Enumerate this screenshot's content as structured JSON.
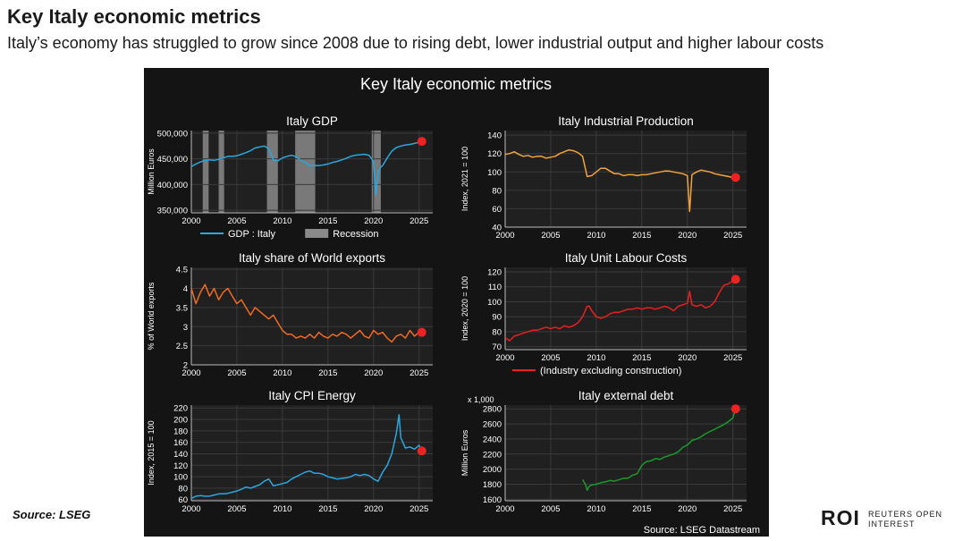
{
  "header": {
    "title": "Key Italy economic metrics",
    "subtitle": "Italy’s economy has struggled to grow since 2008 due to rising debt, lower industrial output and higher labour costs"
  },
  "footer": {
    "source_left": "Source: LSEG",
    "brand": "ROI",
    "brand_tag_line1": "REUTERS OPEN",
    "brand_tag_line2": "INTEREST"
  },
  "figure": {
    "title": "Key Italy economic metrics",
    "source": "Source: LSEG Datastream",
    "background": "#141414"
  },
  "chart_data": [
    {
      "type": "line",
      "title": "Italy GDP",
      "ylabel": "Million Euros",
      "color": "#29a8e0",
      "xlim": [
        2000,
        2026.5
      ],
      "ylim": [
        345000,
        505000
      ],
      "yticks": [
        350000,
        400000,
        450000,
        500000
      ],
      "ytick_labels": [
        "350,000",
        "400,000",
        "450,000",
        "500,000"
      ],
      "xticks": [
        2000,
        2005,
        2010,
        2015,
        2020,
        2025
      ],
      "legend": [
        {
          "label": "GDP : Italy",
          "kind": "line"
        },
        {
          "label": "Recession",
          "kind": "box"
        }
      ],
      "recessions": [
        [
          2001.25,
          2001.9
        ],
        [
          2003.0,
          2003.6
        ],
        [
          2008.3,
          2009.5
        ],
        [
          2011.4,
          2013.6
        ],
        [
          2019.8,
          2020.8
        ]
      ],
      "series": [
        {
          "name": "GDP : Italy",
          "x": [
            2000,
            2000.5,
            2001,
            2001.5,
            2002,
            2002.5,
            2003,
            2003.5,
            2004,
            2004.5,
            2005,
            2005.5,
            2006,
            2006.5,
            2007,
            2007.5,
            2008,
            2008.5,
            2009,
            2009.5,
            2010,
            2010.5,
            2011,
            2011.5,
            2012,
            2012.5,
            2013,
            2013.5,
            2014,
            2014.5,
            2015,
            2015.5,
            2016,
            2016.5,
            2017,
            2017.5,
            2018,
            2018.5,
            2019,
            2019.5,
            2020,
            2020.25,
            2020.5,
            2020.75,
            2021,
            2021.5,
            2022,
            2022.5,
            2023,
            2023.5,
            2024,
            2024.5,
            2025,
            2025.3
          ],
          "y": [
            435000,
            440000,
            444000,
            447000,
            448000,
            447000,
            449000,
            452000,
            455000,
            455000,
            456000,
            459000,
            462000,
            466000,
            471000,
            473000,
            475000,
            470000,
            448000,
            446000,
            452000,
            455000,
            457000,
            454000,
            447000,
            443000,
            437000,
            437000,
            437000,
            438000,
            440000,
            443000,
            445000,
            448000,
            451000,
            455000,
            457000,
            458000,
            459000,
            457000,
            445000,
            380000,
            425000,
            433000,
            437000,
            452000,
            465000,
            472000,
            475000,
            477000,
            478000,
            480000,
            482000,
            484000
          ]
        }
      ],
      "last_point": [
        2025.3,
        484000
      ]
    },
    {
      "type": "line",
      "title": "Italy Industrial Production",
      "ylabel": "Index, 2021 = 100",
      "color": "#f2a33a",
      "xlim": [
        2000,
        2026.5
      ],
      "ylim": [
        40,
        145
      ],
      "yticks": [
        40,
        60,
        80,
        100,
        120,
        140
      ],
      "xticks": [
        2000,
        2005,
        2010,
        2015,
        2020,
        2025
      ],
      "series": [
        {
          "name": "Industrial Production",
          "x": [
            2000,
            2000.5,
            2001,
            2001.5,
            2002,
            2002.5,
            2003,
            2003.5,
            2004,
            2004.5,
            2005,
            2005.5,
            2006,
            2006.5,
            2007,
            2007.5,
            2008,
            2008.5,
            2009,
            2009.5,
            2010,
            2010.5,
            2011,
            2011.5,
            2012,
            2012.5,
            2013,
            2013.5,
            2014,
            2014.5,
            2015,
            2015.5,
            2016,
            2016.5,
            2017,
            2017.5,
            2018,
            2018.5,
            2019,
            2019.5,
            2020,
            2020.25,
            2020.5,
            2021,
            2021.5,
            2022,
            2022.5,
            2023,
            2023.5,
            2024,
            2024.5,
            2025,
            2025.3
          ],
          "y": [
            119,
            120,
            122,
            119,
            117,
            118,
            116,
            117,
            117,
            115,
            116,
            117,
            120,
            122,
            124,
            123,
            121,
            117,
            95,
            96,
            100,
            104,
            104,
            101,
            98,
            98,
            96,
            97,
            97,
            96,
            97,
            97,
            98,
            99,
            100,
            101,
            101,
            100,
            99,
            98,
            96,
            57,
            97,
            100,
            102,
            101,
            100,
            98,
            97,
            96,
            95,
            94,
            94
          ]
        }
      ],
      "last_point": [
        2025.3,
        94
      ]
    },
    {
      "type": "line",
      "title": "Italy share of World exports",
      "ylabel": "% of World exports",
      "color": "#f06a22",
      "xlim": [
        2000,
        2026.5
      ],
      "ylim": [
        2.0,
        4.55
      ],
      "yticks": [
        2.0,
        2.5,
        3.0,
        3.5,
        4.0,
        4.5
      ],
      "xticks": [
        2000,
        2005,
        2010,
        2015,
        2020,
        2025
      ],
      "series": [
        {
          "name": "Share of World exports",
          "x": [
            2000,
            2000.5,
            2001,
            2001.5,
            2002,
            2002.5,
            2003,
            2003.5,
            2004,
            2004.5,
            2005,
            2005.5,
            2006,
            2006.5,
            2007,
            2007.5,
            2008,
            2008.5,
            2009,
            2009.5,
            2010,
            2010.5,
            2011,
            2011.5,
            2012,
            2012.5,
            2013,
            2013.5,
            2014,
            2014.5,
            2015,
            2015.5,
            2016,
            2016.5,
            2017,
            2017.5,
            2018,
            2018.5,
            2019,
            2019.5,
            2020,
            2020.5,
            2021,
            2021.5,
            2022,
            2022.5,
            2023,
            2023.5,
            2024,
            2024.5,
            2025,
            2025.3
          ],
          "y": [
            4.0,
            3.6,
            3.9,
            4.1,
            3.8,
            4.0,
            3.7,
            3.9,
            4.0,
            3.8,
            3.6,
            3.7,
            3.5,
            3.3,
            3.5,
            3.4,
            3.3,
            3.2,
            3.3,
            3.1,
            2.9,
            2.8,
            2.8,
            2.7,
            2.75,
            2.7,
            2.8,
            2.7,
            2.85,
            2.75,
            2.7,
            2.8,
            2.75,
            2.85,
            2.8,
            2.7,
            2.8,
            2.9,
            2.75,
            2.7,
            2.9,
            2.8,
            2.85,
            2.7,
            2.6,
            2.75,
            2.8,
            2.7,
            2.9,
            2.75,
            2.85,
            2.85
          ]
        }
      ],
      "last_point": [
        2025.3,
        2.85
      ]
    },
    {
      "type": "line",
      "title": "Italy Unit Labour Costs",
      "ylabel": "Index, 2020 = 100",
      "color": "#e8211f",
      "xlim": [
        2000,
        2026.5
      ],
      "ylim": [
        68,
        123
      ],
      "yticks": [
        70,
        80,
        90,
        100,
        110,
        120
      ],
      "xticks": [
        2000,
        2005,
        2010,
        2015,
        2020,
        2025
      ],
      "legend": [
        {
          "label": "(Industry excluding construction)",
          "kind": "line"
        }
      ],
      "series": [
        {
          "name": "(Industry excluding construction)",
          "x": [
            2000,
            2000.5,
            2001,
            2001.5,
            2002,
            2002.5,
            2003,
            2003.5,
            2004,
            2004.5,
            2005,
            2005.5,
            2006,
            2006.5,
            2007,
            2007.5,
            2008,
            2008.5,
            2009,
            2009.25,
            2009.5,
            2010,
            2010.5,
            2011,
            2011.5,
            2012,
            2012.5,
            2013,
            2013.5,
            2014,
            2014.5,
            2015,
            2015.5,
            2016,
            2016.5,
            2017,
            2017.5,
            2018,
            2018.5,
            2019,
            2019.5,
            2020,
            2020.25,
            2020.5,
            2021,
            2021.5,
            2022,
            2022.5,
            2023,
            2023.5,
            2024,
            2024.5,
            2025,
            2025.3
          ],
          "y": [
            76,
            74,
            77,
            78,
            79,
            80,
            81,
            81,
            82,
            83,
            82,
            83,
            82,
            84,
            83,
            84,
            86,
            90,
            97,
            97,
            94,
            90,
            89,
            90,
            92,
            93,
            93,
            94,
            95,
            95,
            96,
            95,
            96,
            96,
            95,
            96,
            97,
            96,
            94,
            97,
            98,
            99,
            107,
            98,
            97,
            98,
            96,
            97,
            100,
            106,
            111,
            112,
            114,
            115
          ]
        }
      ],
      "last_point": [
        2025.3,
        115
      ]
    },
    {
      "type": "line",
      "title": "Italy CPI Energy",
      "ylabel": "Index, 2015 = 100",
      "color": "#29a8e0",
      "xlim": [
        2000,
        2026.5
      ],
      "ylim": [
        58,
        225
      ],
      "yticks": [
        60,
        80,
        100,
        120,
        140,
        160,
        180,
        200,
        220
      ],
      "xticks": [
        2000,
        2005,
        2010,
        2015,
        2020,
        2025
      ],
      "series": [
        {
          "name": "CPI Energy",
          "x": [
            2000,
            2000.5,
            2001,
            2001.5,
            2002,
            2002.5,
            2003,
            2003.5,
            2004,
            2004.5,
            2005,
            2005.5,
            2006,
            2006.5,
            2007,
            2007.5,
            2008,
            2008.5,
            2009,
            2009.5,
            2010,
            2010.5,
            2011,
            2011.5,
            2012,
            2012.5,
            2013,
            2013.5,
            2014,
            2014.5,
            2015,
            2015.5,
            2016,
            2016.5,
            2017,
            2017.5,
            2018,
            2018.5,
            2019,
            2019.5,
            2020,
            2020.5,
            2021,
            2021.5,
            2022,
            2022.5,
            2022.8,
            2023,
            2023.5,
            2024,
            2024.5,
            2025,
            2025.3
          ],
          "y": [
            62,
            66,
            67,
            66,
            66,
            68,
            70,
            70,
            71,
            73,
            75,
            78,
            82,
            80,
            83,
            86,
            92,
            96,
            84,
            86,
            88,
            90,
            96,
            100,
            104,
            108,
            110,
            106,
            106,
            104,
            100,
            98,
            96,
            97,
            98,
            100,
            104,
            102,
            104,
            102,
            96,
            92,
            108,
            120,
            140,
            175,
            208,
            168,
            150,
            152,
            148,
            155,
            145
          ]
        }
      ],
      "last_point": [
        2025.3,
        145
      ]
    },
    {
      "type": "line",
      "title": "Italy external debt",
      "ylabel": "Million Euros",
      "unit_note": "x 1,000",
      "color": "#1a9a2e",
      "xlim": [
        2000,
        2026.5
      ],
      "ylim": [
        1580,
        2850
      ],
      "yticks": [
        1600,
        1800,
        2000,
        2200,
        2400,
        2600,
        2800
      ],
      "xticks": [
        2000,
        2005,
        2010,
        2015,
        2020,
        2025
      ],
      "series": [
        {
          "name": "External debt",
          "x": [
            2008.5,
            2008.8,
            2009,
            2009.2,
            2009.5,
            2010,
            2010.5,
            2011,
            2011.5,
            2012,
            2012.5,
            2013,
            2013.5,
            2014,
            2014.5,
            2015,
            2015.5,
            2016,
            2016.5,
            2017,
            2017.5,
            2018,
            2018.5,
            2019,
            2019.5,
            2020,
            2020.5,
            2021,
            2021.5,
            2022,
            2022.5,
            2023,
            2023.5,
            2024,
            2024.5,
            2025,
            2025.3
          ],
          "y": [
            1860,
            1800,
            1720,
            1770,
            1790,
            1800,
            1820,
            1830,
            1850,
            1840,
            1860,
            1880,
            1880,
            1920,
            1940,
            2050,
            2100,
            2110,
            2140,
            2130,
            2160,
            2180,
            2200,
            2230,
            2290,
            2320,
            2380,
            2400,
            2430,
            2470,
            2500,
            2530,
            2560,
            2590,
            2630,
            2680,
            2800
          ]
        }
      ],
      "last_point": [
        2025.3,
        2800
      ]
    }
  ]
}
